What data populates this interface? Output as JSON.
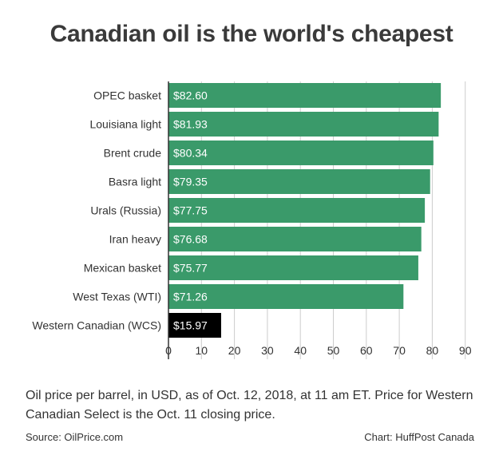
{
  "title": "Canadian oil is the world's cheapest",
  "note": "Oil price per barrel, in USD, as of Oct. 12, 2018, at 11 am ET. Price for Western Canadian Select is the Oct. 11 closing price.",
  "source": "Source: OilPrice.com",
  "credit": "Chart: HuffPost Canada",
  "colors": {
    "bar": "#3a9a6a",
    "highlight": "#000000",
    "grid": "#cccccc",
    "axis": "#333333"
  },
  "chart_data": {
    "type": "bar",
    "orientation": "horizontal",
    "categories": [
      "OPEC basket",
      "Louisiana light",
      "Brent crude",
      "Basra light",
      "Urals (Russia)",
      "Iran heavy",
      "Mexican basket",
      "West Texas (WTI)",
      "Western Canadian (WCS)"
    ],
    "values": [
      82.6,
      81.93,
      80.34,
      79.35,
      77.75,
      76.68,
      75.77,
      71.26,
      15.97
    ],
    "value_labels": [
      "$82.60",
      "$81.93",
      "$80.34",
      "$79.35",
      "$77.75",
      "$76.68",
      "$75.77",
      "$71.26",
      "$15.97"
    ],
    "highlight_index": 8,
    "xlim": [
      0,
      92
    ],
    "xticks": [
      0,
      10,
      20,
      30,
      40,
      50,
      60,
      70,
      80,
      90
    ],
    "grid": true,
    "xlabel": "",
    "ylabel": ""
  }
}
